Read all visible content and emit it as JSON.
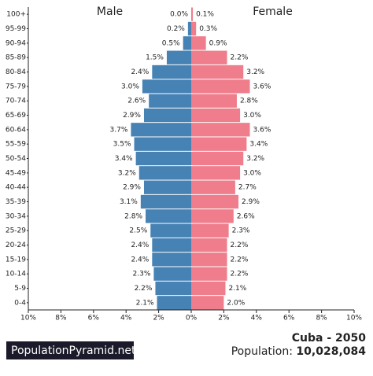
{
  "chart_data": {
    "type": "pyramid",
    "title": "Cuba - 2050",
    "population_label": "Population:",
    "population": "10,028,084",
    "site": "PopulationPyramid.net",
    "categories": [
      "100+",
      "95-99",
      "90-94",
      "85-89",
      "80-84",
      "75-79",
      "70-74",
      "65-69",
      "60-64",
      "55-59",
      "50-54",
      "45-49",
      "40-44",
      "35-39",
      "30-34",
      "25-29",
      "20-24",
      "15-19",
      "10-14",
      "5-9",
      "0-4"
    ],
    "series": [
      {
        "name": "Male",
        "color": "#4682b4",
        "side": "left",
        "values": [
          0.0,
          0.2,
          0.5,
          1.5,
          2.4,
          3.0,
          2.6,
          2.9,
          3.7,
          3.5,
          3.4,
          3.2,
          2.9,
          3.1,
          2.8,
          2.5,
          2.4,
          2.4,
          2.3,
          2.2,
          2.1
        ],
        "value_labels": [
          "0.0%",
          "0.2%",
          "0.5%",
          "1.5%",
          "2.4%",
          "3.0%",
          "2.6%",
          "2.9%",
          "3.7%",
          "3.5%",
          "3.4%",
          "3.2%",
          "2.9%",
          "3.1%",
          "2.8%",
          "2.5%",
          "2.4%",
          "2.4%",
          "2.3%",
          "2.2%",
          "2.1%"
        ]
      },
      {
        "name": "Female",
        "color": "#ef7d8b",
        "side": "right",
        "values": [
          0.1,
          0.3,
          0.9,
          2.2,
          3.2,
          3.6,
          2.8,
          3.0,
          3.6,
          3.4,
          3.2,
          3.0,
          2.7,
          2.9,
          2.6,
          2.3,
          2.2,
          2.2,
          2.2,
          2.1,
          2.0
        ],
        "value_labels": [
          "0.1%",
          "0.3%",
          "0.9%",
          "2.2%",
          "3.2%",
          "3.6%",
          "2.8%",
          "3.0%",
          "3.6%",
          "3.4%",
          "3.2%",
          "3.0%",
          "2.7%",
          "2.9%",
          "2.6%",
          "2.3%",
          "2.2%",
          "2.2%",
          "2.2%",
          "2.1%",
          "2.0%"
        ]
      }
    ],
    "xlim": [
      -10,
      10
    ],
    "xticks": [
      {
        "value": -10,
        "label": "10%"
      },
      {
        "value": -8,
        "label": "8%"
      },
      {
        "value": -6,
        "label": "6%"
      },
      {
        "value": -4,
        "label": "4%"
      },
      {
        "value": -2,
        "label": "2%"
      },
      {
        "value": 0,
        "label": "0%"
      },
      {
        "value": 2,
        "label": "2%"
      },
      {
        "value": 4,
        "label": "4%"
      },
      {
        "value": 6,
        "label": "6%"
      },
      {
        "value": 8,
        "label": "8%"
      },
      {
        "value": 10,
        "label": "10%"
      }
    ]
  }
}
